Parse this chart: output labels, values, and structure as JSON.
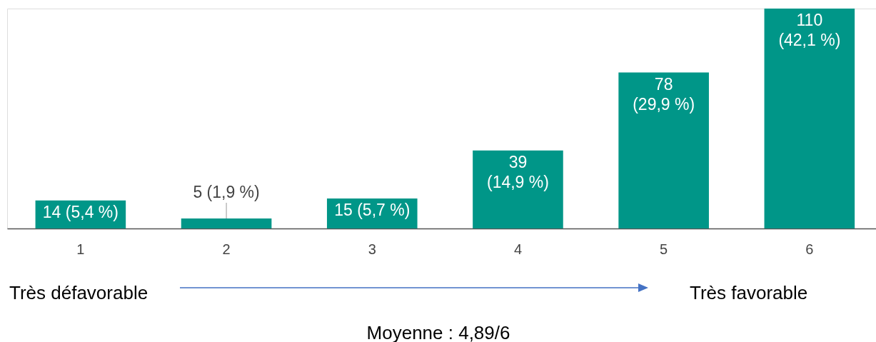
{
  "chart_data": {
    "type": "bar",
    "categories": [
      "1",
      "2",
      "3",
      "4",
      "5",
      "6"
    ],
    "values": [
      14,
      5,
      15,
      39,
      78,
      110
    ],
    "color": "#009688",
    "value_labels": [
      "14 (5,4 %)",
      "5 (1,9 %)",
      "15 (5,7 %)",
      "39\n(14,9 %)",
      "78\n(29,9 %)",
      "110\n(42,1 %)"
    ],
    "annotations": [
      "Très défavorable",
      "Très favorable",
      "Moyenne : 4,89/6"
    ]
  }
}
